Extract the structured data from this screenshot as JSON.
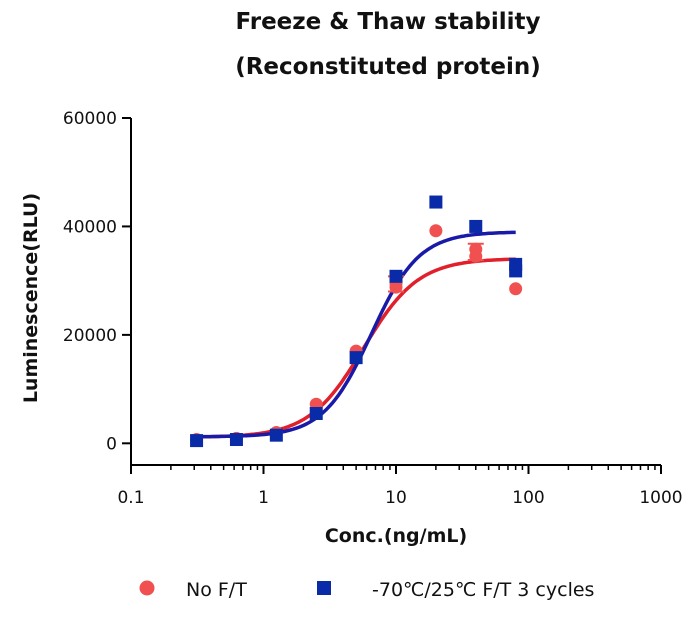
{
  "chart_data": {
    "type": "scatter",
    "title": [
      "Freeze & Thaw stability",
      "(Reconstituted protein)"
    ],
    "xlabel": "Conc.(ng/mL)",
    "ylabel": "Luminescence(RLU)",
    "xscale": "log",
    "xlim": [
      0.1,
      1000
    ],
    "ylim": [
      -4000,
      60000
    ],
    "xticks": [
      0.1,
      1,
      10,
      100,
      1000
    ],
    "xtick_labels": [
      "0.1",
      "1",
      "10",
      "100",
      "1000"
    ],
    "yticks": [
      0,
      20000,
      40000,
      60000
    ],
    "ytick_labels": [
      "0",
      "20000",
      "40000",
      "60000"
    ],
    "legend_position": "bottom",
    "series": [
      {
        "name": "No F/T",
        "marker": "circle",
        "color": "#f05050",
        "line_color": "#e0202a",
        "points": [
          {
            "x": 0.3125,
            "y": 700
          },
          {
            "x": 0.625,
            "y": 900
          },
          {
            "x": 1.25,
            "y": 2000
          },
          {
            "x": 2.5,
            "y": 7200
          },
          {
            "x": 5,
            "y": 17000
          },
          {
            "x": 10,
            "y": 29500
          },
          {
            "x": 10,
            "y": 28800
          },
          {
            "x": 20,
            "y": 39200
          },
          {
            "x": 40,
            "y": 34500
          },
          {
            "x": 40,
            "y": 35800
          },
          {
            "x": 80,
            "y": 28500
          }
        ],
        "error_bars": [
          {
            "x": 40,
            "low": 33800,
            "high": 36800
          },
          {
            "x": 10,
            "low": 28000,
            "high": 30800
          }
        ],
        "fit": {
          "bottom": 1100,
          "top": 34100,
          "ec50": 5.7,
          "hill": 2.1
        }
      },
      {
        "name": "-70℃/25℃ F/T 3 cycles",
        "marker": "square",
        "color": "#0a2ba8",
        "line_color": "#1a1aa8",
        "points": [
          {
            "x": 0.3125,
            "y": 500
          },
          {
            "x": 0.625,
            "y": 700
          },
          {
            "x": 1.25,
            "y": 1500
          },
          {
            "x": 2.5,
            "y": 5500
          },
          {
            "x": 5,
            "y": 15800
          },
          {
            "x": 10,
            "y": 30800
          },
          {
            "x": 20,
            "y": 44500
          },
          {
            "x": 40,
            "y": 40000
          },
          {
            "x": 80,
            "y": 33000
          },
          {
            "x": 80,
            "y": 31800
          }
        ],
        "error_bars": [],
        "fit": {
          "bottom": 1200,
          "top": 39000,
          "ec50": 6.5,
          "hill": 2.4
        }
      }
    ]
  }
}
